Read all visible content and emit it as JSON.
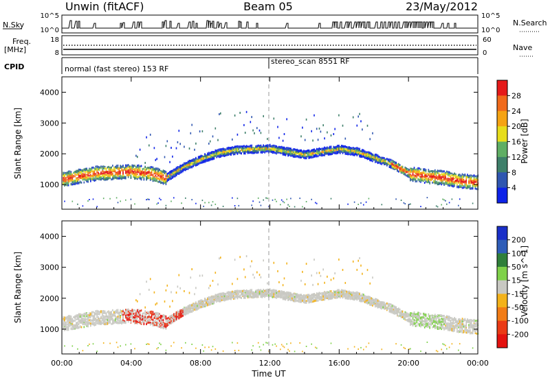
{
  "header": {
    "station": "Unwin (fitACF)",
    "beam": "Beam 05",
    "date": "23/May/2012"
  },
  "strips": {
    "nsky_label": "N.Sky",
    "nsky_ticks": [
      "10^5",
      "10^0"
    ],
    "nsearch_label": "N.Search",
    "freq_label_line1": "Freq.",
    "freq_label_line2": "[MHz]",
    "freq_ticks": [
      "18",
      "8"
    ],
    "nave_label": "Nave",
    "nave_ticks": [
      "60",
      "0"
    ],
    "cpid_label": "CPID",
    "cpid_segments": [
      "normal (fast stereo) 153 RF",
      "stereo_scan 8551 RF"
    ]
  },
  "chart_data": [
    {
      "type": "heatmap",
      "title": "",
      "xlabel": "Time UT",
      "ylabel": "Slant Range [km]",
      "xlim": [
        "00:00",
        "24:00"
      ],
      "ylim": [
        200,
        4500
      ],
      "x_ticks": [
        "00:00",
        "04:00",
        "08:00",
        "12:00",
        "16:00",
        "20:00",
        "00:00"
      ],
      "y_ticks": [
        1000,
        2000,
        3000,
        4000
      ],
      "colorbar": {
        "label": "Power [dB]",
        "ticks": [
          "28",
          "24",
          "20",
          "16",
          "12",
          "8",
          "4"
        ],
        "bins": [
          {
            "range": [
              0,
              4
            ],
            "color": "#0d22e8"
          },
          {
            "range": [
              4,
              8
            ],
            "color": "#2f56b0"
          },
          {
            "range": [
              8,
              12
            ],
            "color": "#3e7f6a"
          },
          {
            "range": [
              12,
              16
            ],
            "color": "#5fae64"
          },
          {
            "range": [
              16,
              20
            ],
            "color": "#e7dd1b"
          },
          {
            "range": [
              20,
              24
            ],
            "color": "#f5a313"
          },
          {
            "range": [
              24,
              28
            ],
            "color": "#f06a1b"
          },
          {
            "range": [
              28,
              32
            ],
            "color": "#e51a1a"
          }
        ]
      },
      "backscatter_band": {
        "x_hours": [
          0,
          2,
          4,
          5,
          6,
          7,
          8,
          9,
          10,
          11,
          12,
          13,
          14,
          15,
          16,
          17,
          18,
          19,
          20,
          21,
          22,
          23,
          24
        ],
        "center_km": [
          1200,
          1400,
          1450,
          1400,
          1250,
          1600,
          1850,
          2050,
          2150,
          2180,
          2200,
          2100,
          2000,
          2100,
          2180,
          2100,
          1900,
          1700,
          1400,
          1300,
          1250,
          1150,
          1100
        ]
      }
    },
    {
      "type": "heatmap",
      "title": "",
      "xlabel": "Time UT",
      "ylabel": "Slant Range [km]",
      "xlim": [
        "00:00",
        "24:00"
      ],
      "ylim": [
        200,
        4500
      ],
      "x_ticks": [
        "00:00",
        "04:00",
        "08:00",
        "12:00",
        "16:00",
        "20:00",
        "00:00"
      ],
      "y_ticks": [
        1000,
        2000,
        3000,
        4000
      ],
      "colorbar": {
        "label": "Velocity [m s^-1]",
        "ticks": [
          "200",
          "100",
          "50",
          "15",
          "-15",
          "-50",
          "-100",
          "-200"
        ],
        "bins": [
          {
            "range": [
              200,
              300
            ],
            "color": "#1a2fc8"
          },
          {
            "range": [
              100,
              200
            ],
            "color": "#2e5db8"
          },
          {
            "range": [
              50,
              100
            ],
            "color": "#2f7f3a"
          },
          {
            "range": [
              15,
              50
            ],
            "color": "#7fd14a"
          },
          {
            "range": [
              -15,
              15
            ],
            "color": "#c8c8c2"
          },
          {
            "range": [
              -50,
              -15
            ],
            "color": "#f3b21a"
          },
          {
            "range": [
              -100,
              -50
            ],
            "color": "#f27c16"
          },
          {
            "range": [
              -200,
              -100
            ],
            "color": "#ea3a15"
          },
          {
            "range": [
              -300,
              -200
            ],
            "color": "#e3120f"
          }
        ]
      }
    }
  ]
}
